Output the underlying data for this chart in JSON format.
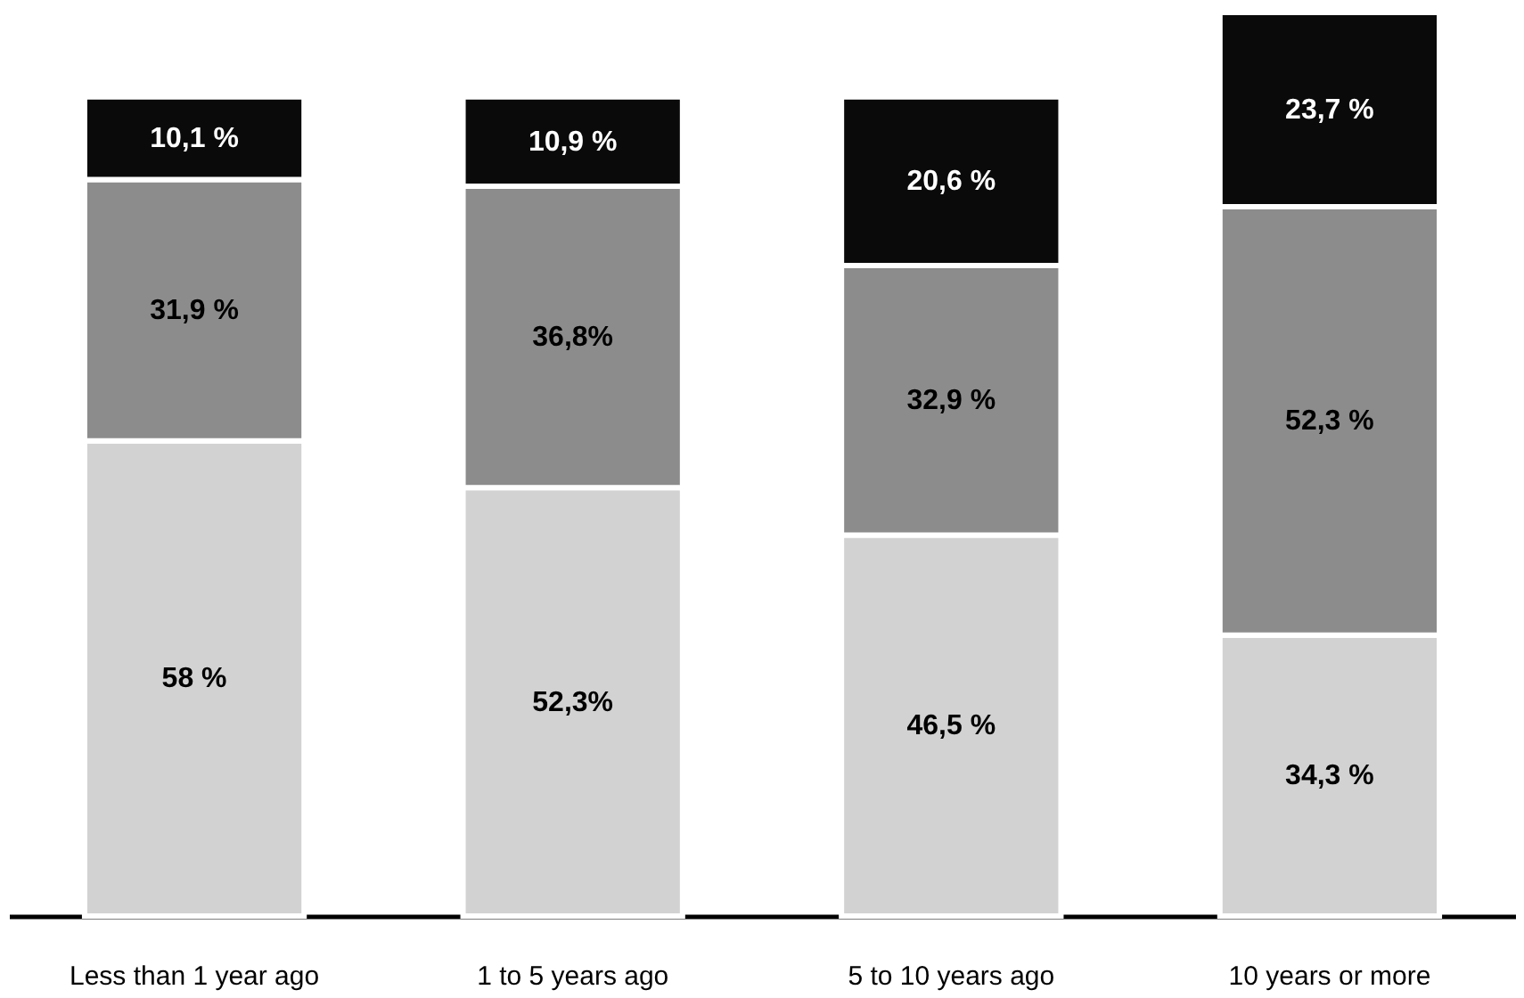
{
  "chart_data": {
    "type": "bar",
    "stacked": true,
    "categories": [
      "Less than 1 year ago",
      "1 to 5 years ago",
      "5 to 10 years ago",
      "10 years or more"
    ],
    "series": [
      {
        "color": "#d2d2d2",
        "values": [
          58,
          52.3,
          46.5,
          34.3
        ],
        "value_labels": [
          "58 %",
          "52,3%",
          "46,5 %",
          "34,3 %"
        ]
      },
      {
        "color": "#8c8c8c",
        "values": [
          31.9,
          36.8,
          32.9,
          52.3
        ],
        "value_labels": [
          "31,9 %",
          "36,8%",
          "32,9 %",
          "52,3 %"
        ]
      },
      {
        "color": "#0a0a0a",
        "values": [
          10.1,
          10.9,
          20.6,
          23.7
        ],
        "value_labels": [
          "10,1 %",
          "10,9 %",
          "20,6 %",
          "23,7 %"
        ]
      }
    ],
    "grid": false
  }
}
